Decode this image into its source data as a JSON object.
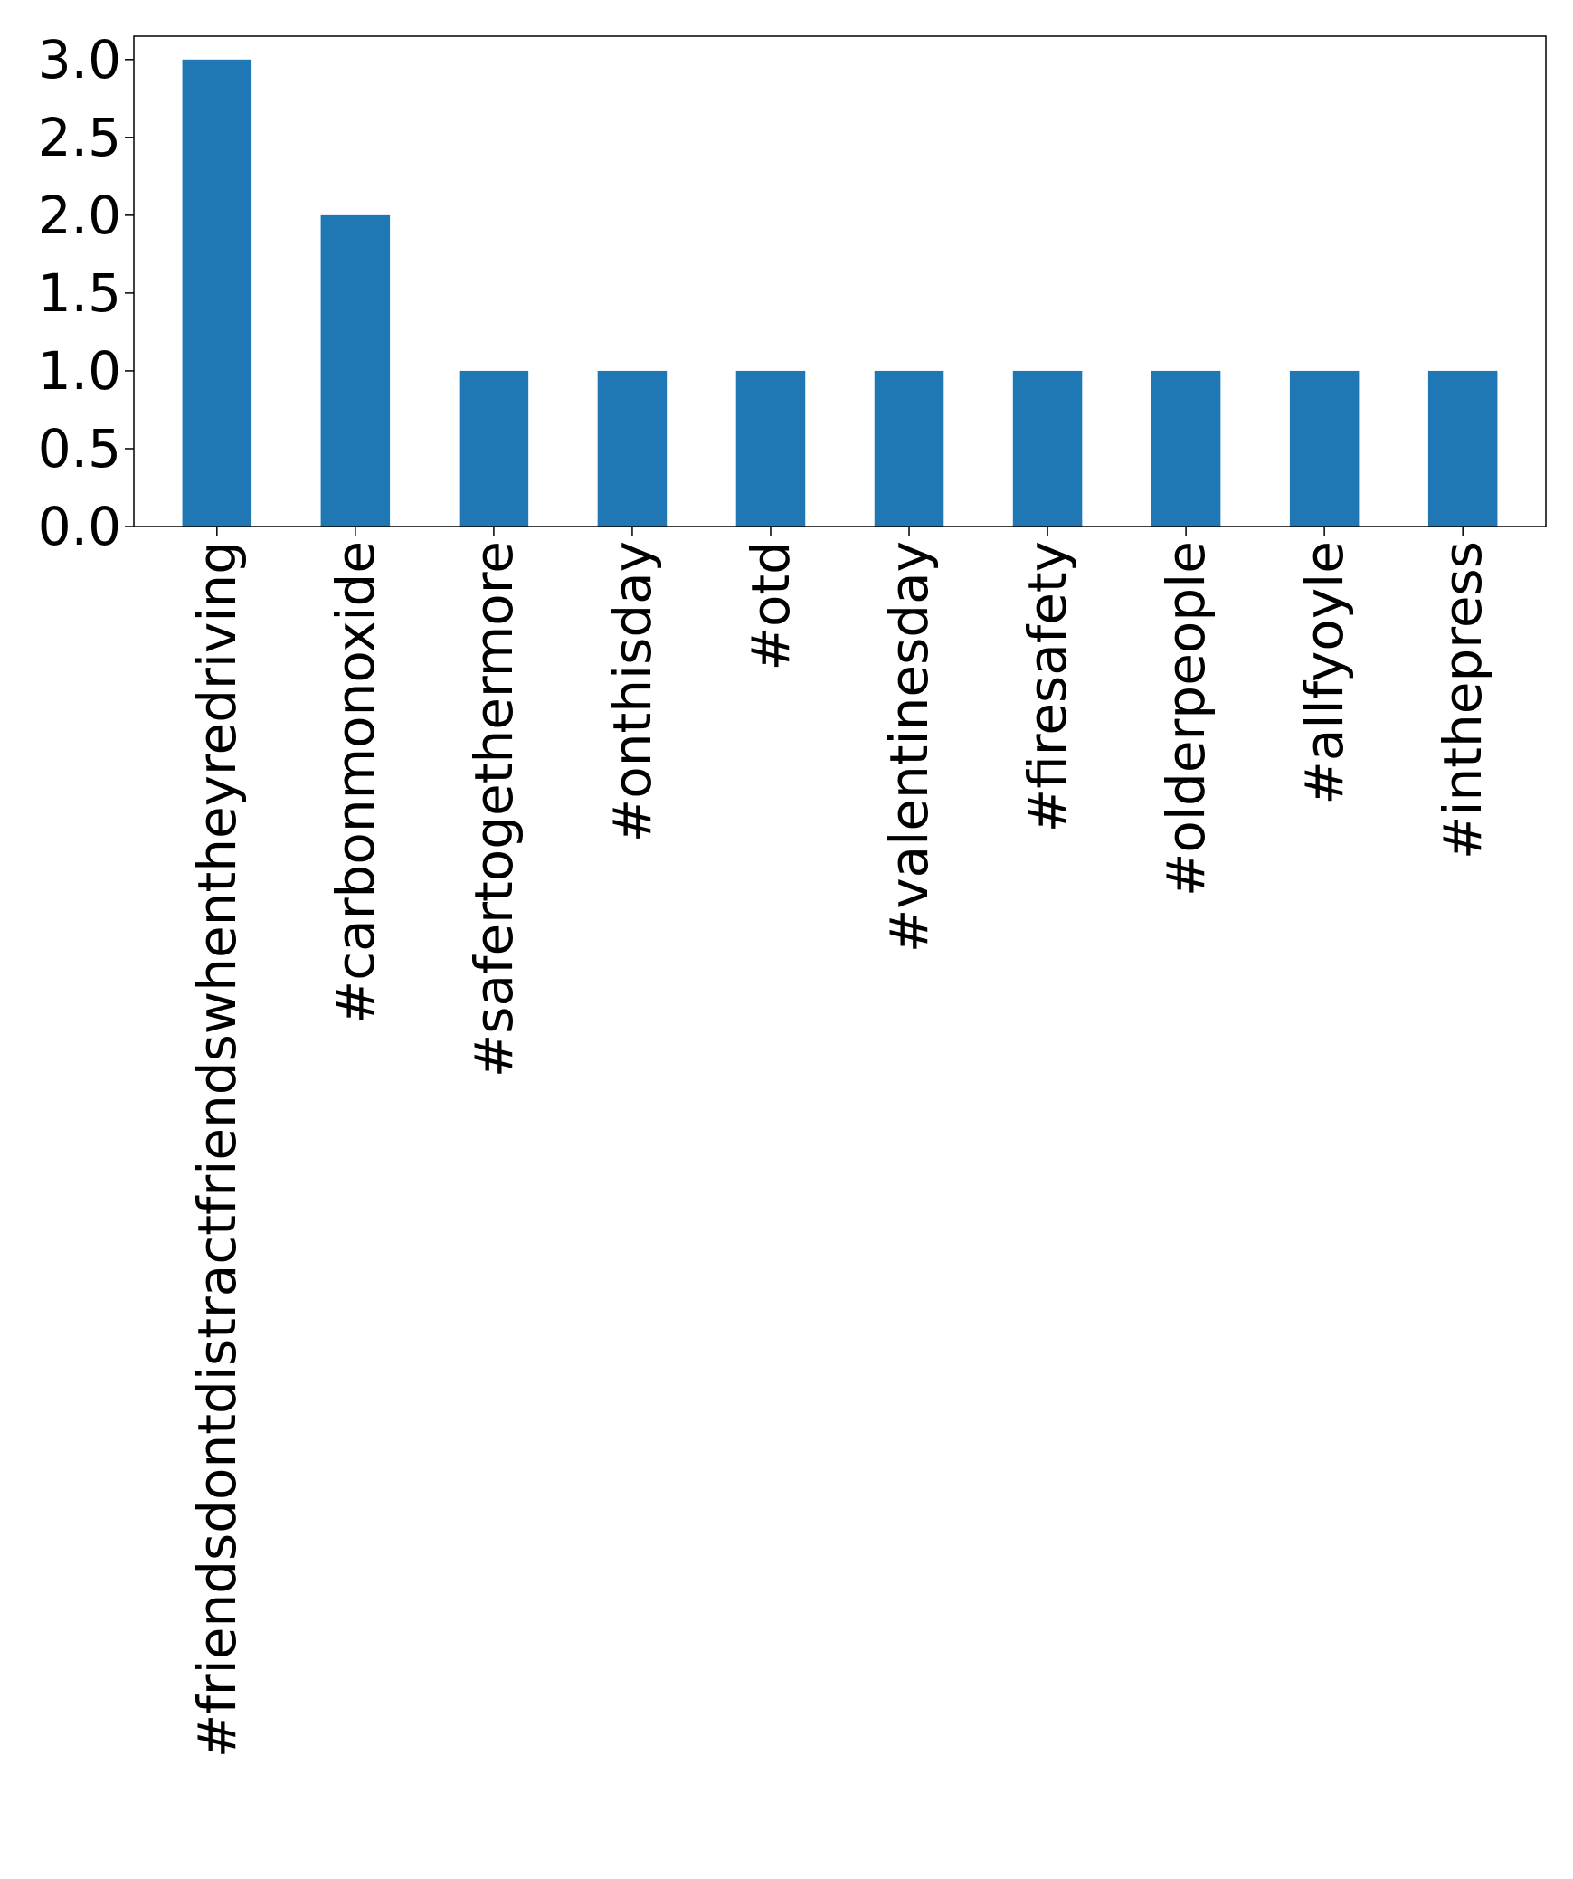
{
  "chart_data": {
    "type": "bar",
    "categories": [
      "#friendsdontdistractfriendswhentheyredriving",
      "#carbonmonoxide",
      "#safertogethermore",
      "#onthisday",
      "#otd",
      "#valentinesday",
      "#firesafety",
      "#olderpeople",
      "#allfyoyle",
      "#inthepress"
    ],
    "values": [
      3,
      2,
      1,
      1,
      1,
      1,
      1,
      1,
      1,
      1
    ],
    "title": "",
    "xlabel": "",
    "ylabel": "",
    "ylim": [
      0,
      3.15
    ],
    "yticks": [
      "0.0",
      "0.5",
      "1.0",
      "1.5",
      "2.0",
      "2.5",
      "3.0"
    ],
    "grid": false,
    "bar_color": "#1f77b4",
    "x_tick_rotation": "vertical"
  }
}
